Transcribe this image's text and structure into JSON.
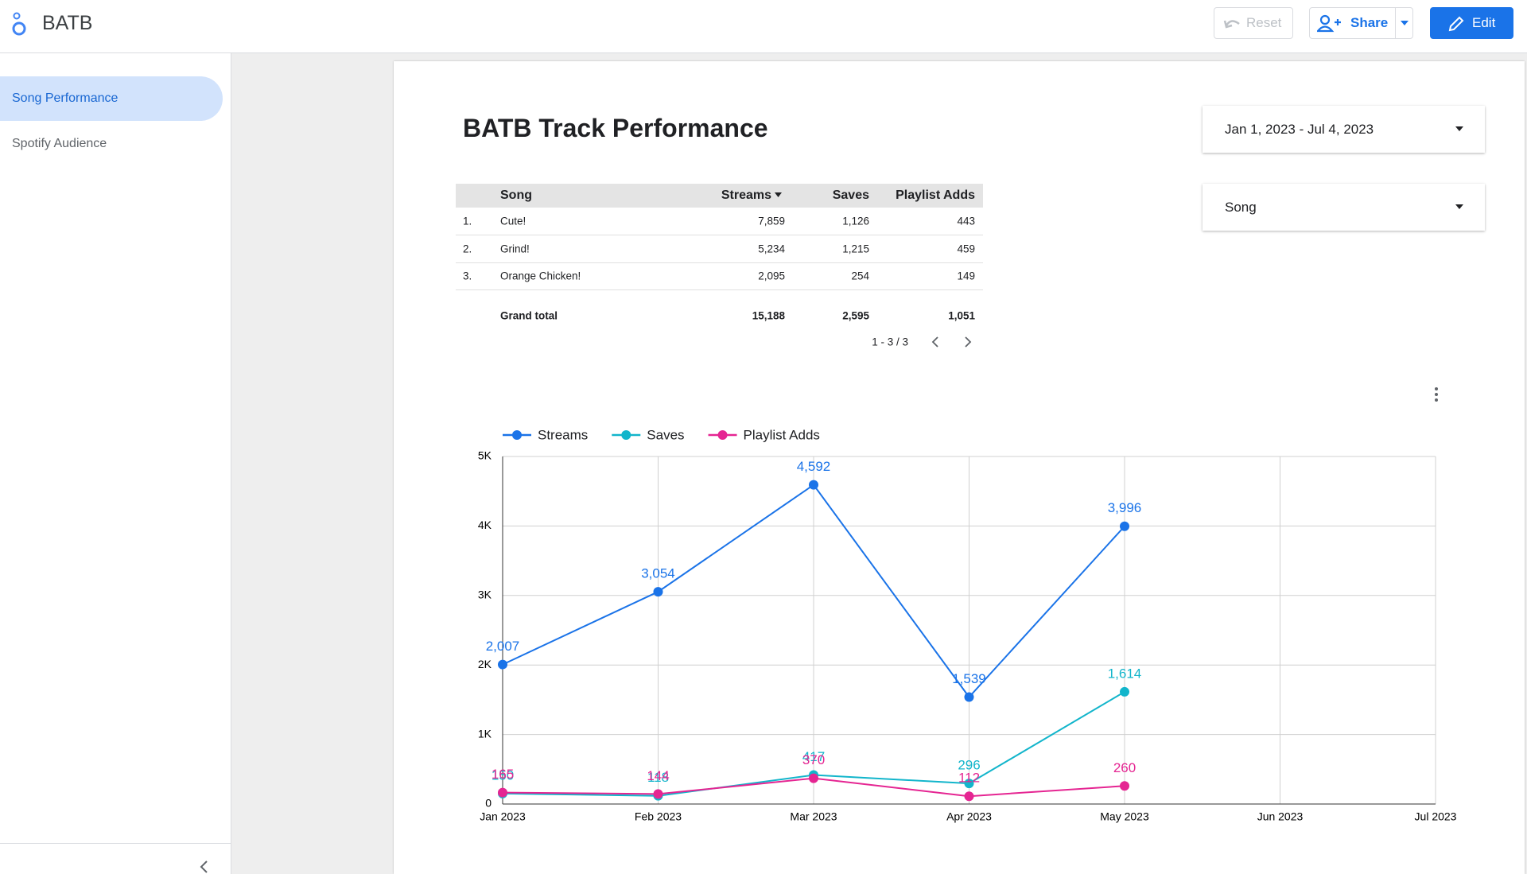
{
  "header": {
    "app_name": "BATB",
    "reset": "Reset",
    "share": "Share",
    "edit": "Edit"
  },
  "nav": {
    "items": [
      "Song Performance",
      "Spotify Audience"
    ]
  },
  "report": {
    "title": "BATB Track Performance",
    "filters": [
      "Jan 1, 2023 - Jul 4, 2023",
      "Song"
    ]
  },
  "table": {
    "columns": [
      "Song",
      "Streams",
      "Saves",
      "Playlist Adds"
    ],
    "rows": [
      [
        "1.",
        "Cute!",
        "7,859",
        "1,126",
        "443"
      ],
      [
        "2.",
        "Grind!",
        "5,234",
        "1,215",
        "459"
      ],
      [
        "3.",
        "Orange Chicken!",
        "2,095",
        "254",
        "149"
      ]
    ],
    "total": [
      "Grand total",
      "15,188",
      "2,595",
      "1,051"
    ],
    "pagination": "1 - 3 / 3"
  },
  "chart_data": {
    "type": "line",
    "categories": [
      "Jan 2023",
      "Feb 2023",
      "Mar 2023",
      "Apr 2023",
      "May 2023",
      "Jun 2023",
      "Jul 2023"
    ],
    "series": [
      {
        "name": "Streams",
        "color": "#1a73e8",
        "values": [
          2007,
          3054,
          4592,
          1539,
          3996,
          null,
          null
        ],
        "value_labels": [
          "2,007",
          "3,054",
          "4,592",
          "1,539",
          "3,996",
          null,
          null
        ]
      },
      {
        "name": "Saves",
        "color": "#12b5cb",
        "values": [
          150,
          118,
          417,
          296,
          1614,
          null,
          null
        ],
        "value_labels": [
          "150",
          "118",
          "417",
          "296",
          "1,614",
          null,
          null
        ]
      },
      {
        "name": "Playlist Adds",
        "color": "#e52592",
        "values": [
          165,
          144,
          370,
          112,
          260,
          null,
          null
        ]
      }
    ],
    "ylim": [
      0,
      5000
    ],
    "yticks": [
      0,
      {
        "value": 1000,
        "label": "1K"
      },
      {
        "value": 2000,
        "label": "2K"
      },
      {
        "value": 3000,
        "label": "3K"
      },
      {
        "value": 4000,
        "label": "4K"
      },
      {
        "value": 5000,
        "label": "5K"
      }
    ],
    "grid": true,
    "legend": "top"
  }
}
